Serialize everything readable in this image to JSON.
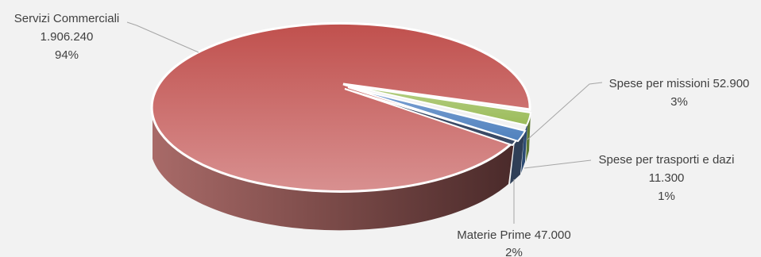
{
  "chart_data": {
    "type": "pie",
    "style": "3d-exploded",
    "title": "",
    "colors": {
      "Servizi Commerciali": "#c0504d",
      "Spese per missioni": "#9bbb59",
      "Spese per trasporti e dazi": "#4f81bd",
      "Materie Prime": "#4a5a7a"
    },
    "slices": [
      {
        "label": "Servizi Commerciali",
        "value": 1906240,
        "value_text": "1.906.240",
        "percent_text": "94%"
      },
      {
        "label": "Spese per missioni",
        "value": 52900,
        "value_text": "52.900",
        "percent_text": "3%"
      },
      {
        "label": "Spese per trasporti e dazi",
        "value": 11300,
        "value_text": "11.300",
        "percent_text": "1%"
      },
      {
        "label": "Materie Prime",
        "value": 47000,
        "value_text": "47.000",
        "percent_text": "2%"
      }
    ],
    "labels": {
      "servizi": {
        "line1": "Servizi Commerciali",
        "line2": "1.906.240",
        "line3": "94%"
      },
      "missioni": {
        "line1": "Spese per missioni 52.900",
        "line2": "3%"
      },
      "trasporti": {
        "line1": "Spese per trasporti e dazi",
        "line2": "11.300",
        "line3": "1%"
      },
      "materie": {
        "line1": "Materie Prime 47.000",
        "line2": "2%"
      }
    }
  }
}
